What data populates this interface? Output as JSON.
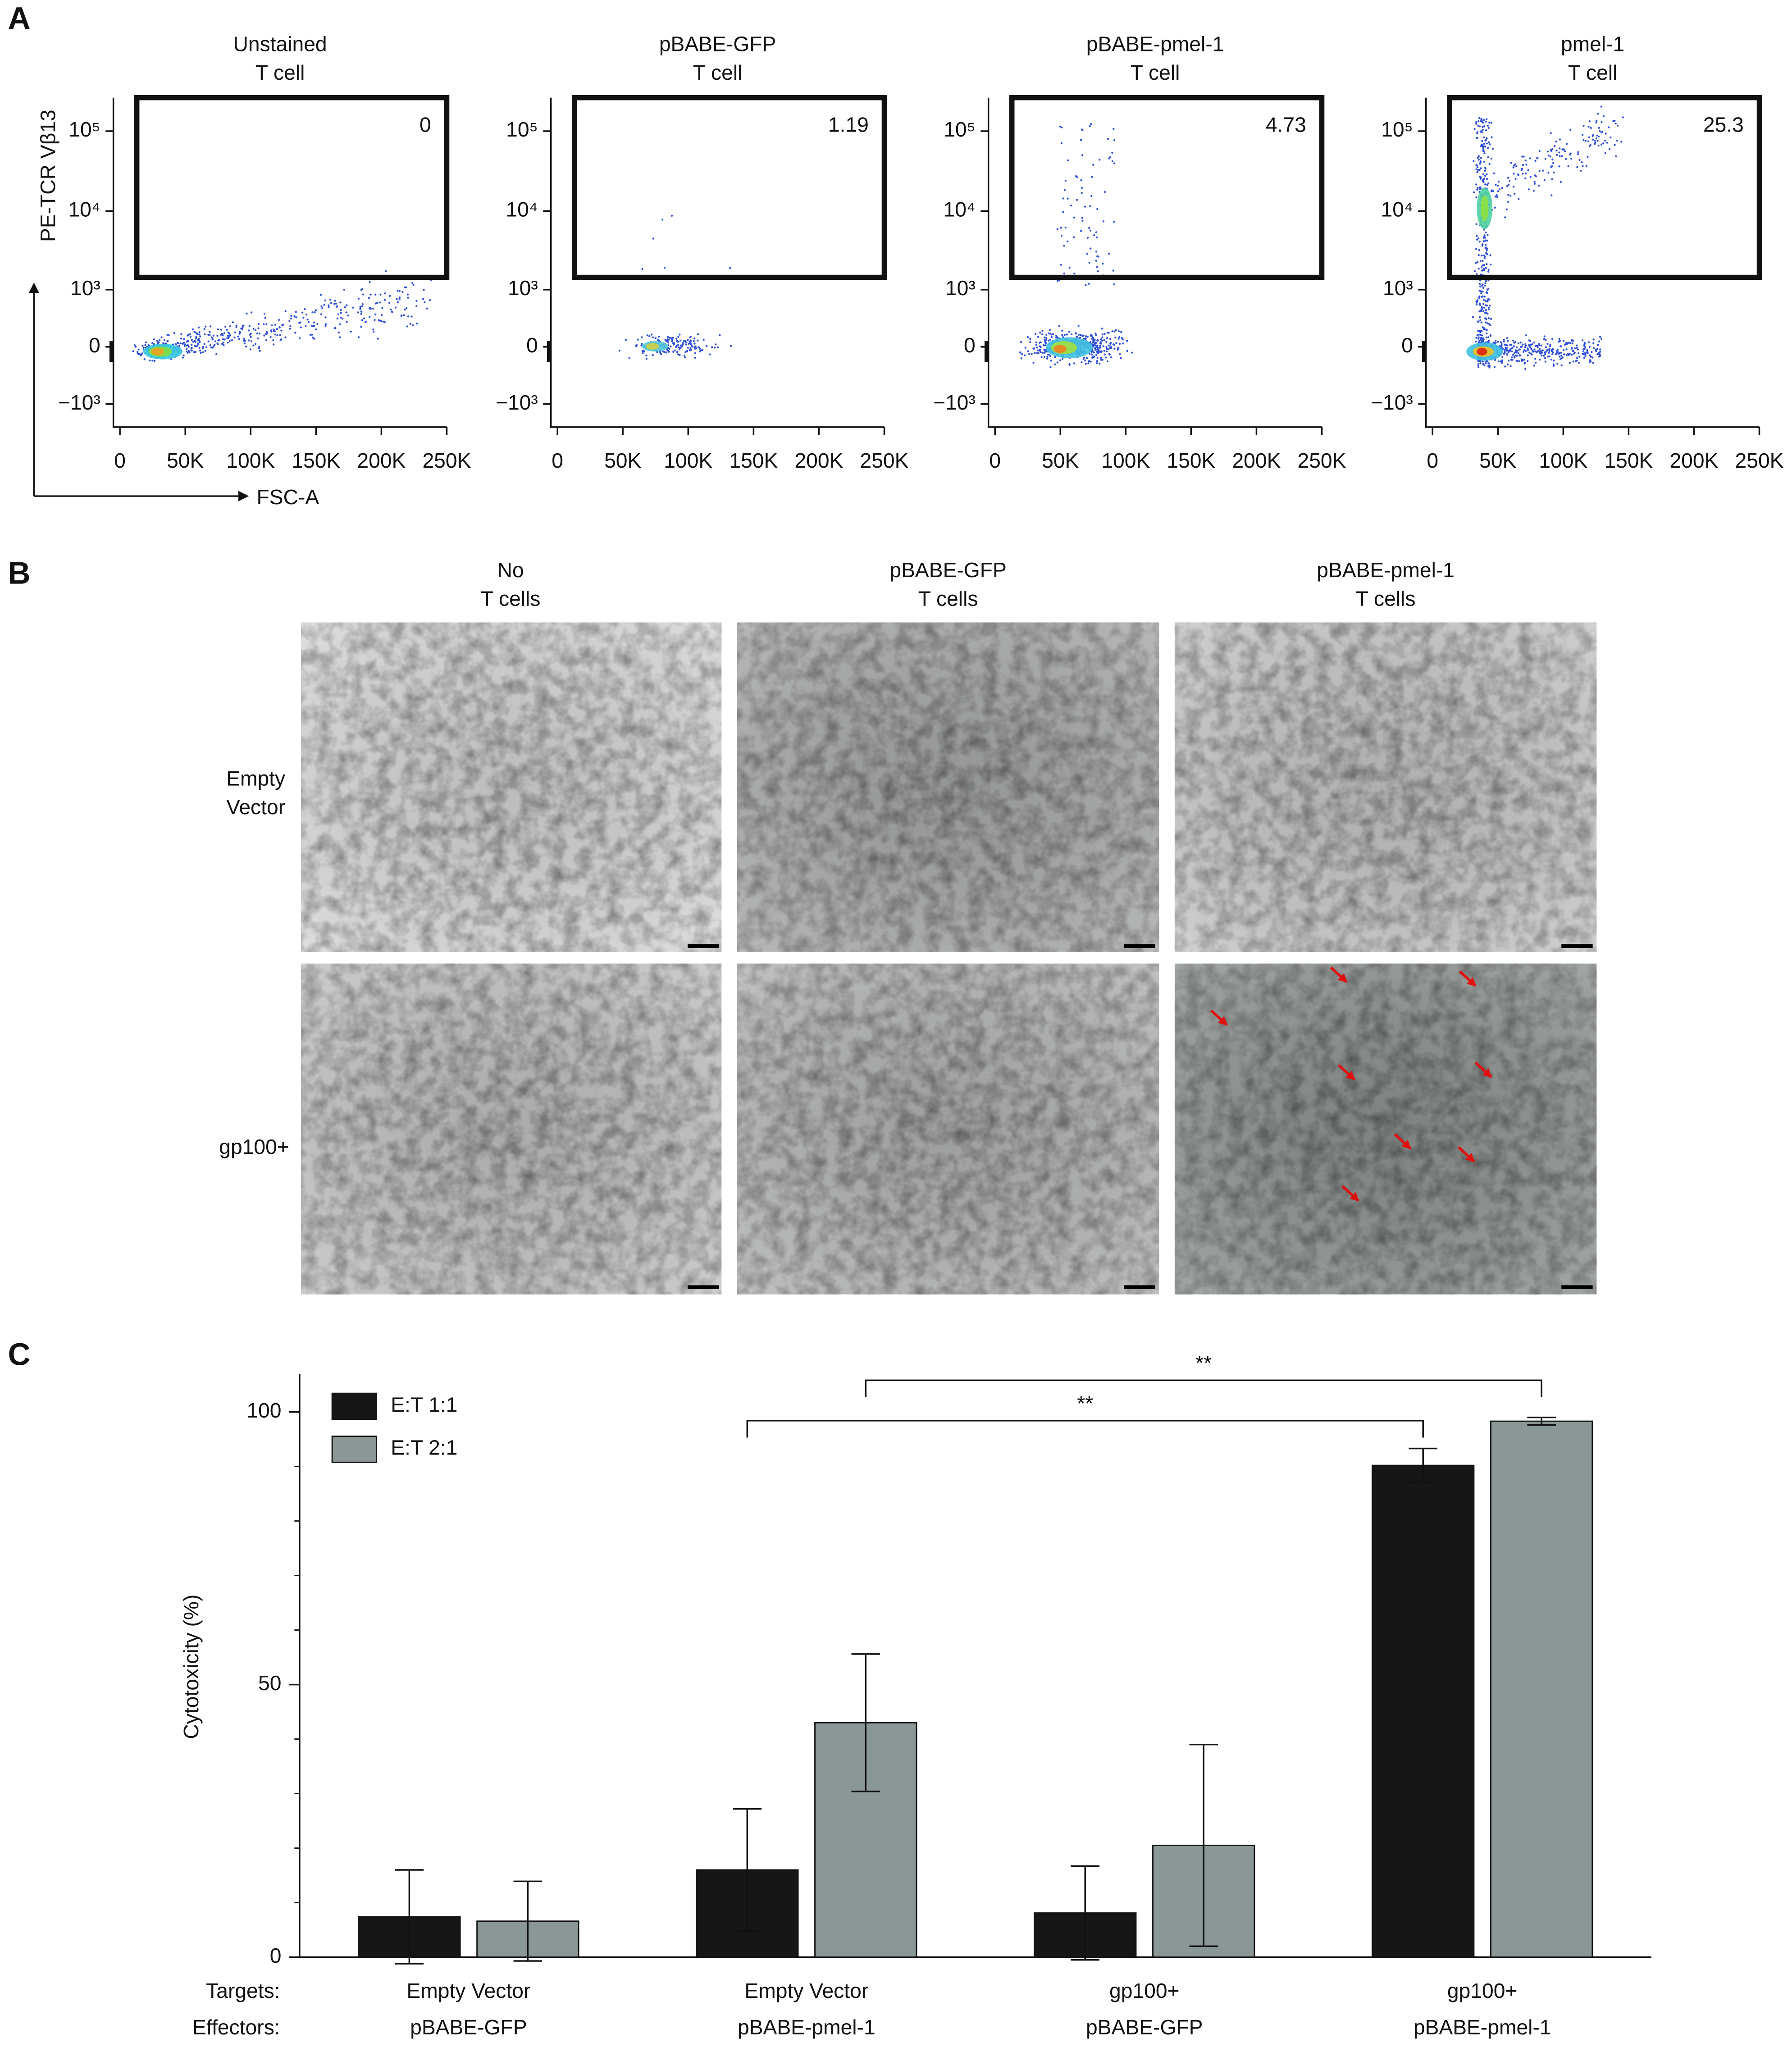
{
  "panel_labels": [
    "A",
    "B",
    "C"
  ],
  "chart_data": [
    {
      "type": "scatter",
      "title": [
        "Unstained",
        "T cell"
      ],
      "gate_percent": 0,
      "xlabel": "FSC-A",
      "ylabel": "PE-TCR Vβ13",
      "xlim": [
        -5000,
        250000
      ],
      "xticks": [
        0,
        {
          "value": 50000,
          "label": "50K"
        },
        {
          "value": 100000,
          "label": "100K"
        },
        {
          "value": 150000,
          "label": "150K"
        },
        {
          "value": 200000,
          "label": "200K"
        },
        {
          "value": 250000,
          "label": "250K"
        }
      ],
      "ylim": [
        -2000,
        262144
      ],
      "yscale": "biexponential",
      "yticks": [
        {
          "value": -1000,
          "label": "−10³"
        },
        0,
        {
          "value": 1000,
          "label": "10³"
        },
        {
          "value": 10000,
          "label": "10⁴"
        },
        {
          "value": 100000,
          "label": "10⁵"
        }
      ]
    },
    {
      "type": "scatter",
      "title": [
        "pBABE-GFP",
        "T cell"
      ],
      "gate_percent": 1.19,
      "xlim": [
        -5000,
        250000
      ],
      "xticks": [
        0,
        {
          "value": 50000,
          "label": "50K"
        },
        {
          "value": 100000,
          "label": "100K"
        },
        {
          "value": 150000,
          "label": "150K"
        },
        {
          "value": 200000,
          "label": "200K"
        },
        {
          "value": 250000,
          "label": "250K"
        }
      ],
      "ylim": [
        -2000,
        262144
      ],
      "yscale": "biexponential",
      "yticks": [
        {
          "value": -1000,
          "label": "−10³"
        },
        0,
        {
          "value": 1000,
          "label": "10³"
        },
        {
          "value": 10000,
          "label": "10⁴"
        },
        {
          "value": 100000,
          "label": "10⁵"
        }
      ]
    },
    {
      "type": "scatter",
      "title": [
        "pBABE-pmel-1",
        "T cell"
      ],
      "gate_percent": 4.73,
      "xlim": [
        -5000,
        250000
      ],
      "xticks": [
        0,
        {
          "value": 50000,
          "label": "50K"
        },
        {
          "value": 100000,
          "label": "100K"
        },
        {
          "value": 150000,
          "label": "150K"
        },
        {
          "value": 200000,
          "label": "200K"
        },
        {
          "value": 250000,
          "label": "250K"
        }
      ],
      "ylim": [
        -2000,
        262144
      ],
      "yscale": "biexponential",
      "yticks": [
        {
          "value": -1000,
          "label": "−10³"
        },
        0,
        {
          "value": 1000,
          "label": "10³"
        },
        {
          "value": 10000,
          "label": "10⁴"
        },
        {
          "value": 100000,
          "label": "10⁵"
        }
      ]
    },
    {
      "type": "scatter",
      "title": [
        "pmel-1",
        "T cell"
      ],
      "gate_percent": 25.3,
      "xlim": [
        -5000,
        250000
      ],
      "xticks": [
        0,
        {
          "value": 50000,
          "label": "50K"
        },
        {
          "value": 100000,
          "label": "100K"
        },
        {
          "value": 150000,
          "label": "150K"
        },
        {
          "value": 200000,
          "label": "200K"
        },
        {
          "value": 250000,
          "label": "250K"
        }
      ],
      "ylim": [
        -2000,
        262144
      ],
      "yscale": "biexponential",
      "yticks": [
        {
          "value": -1000,
          "label": "−10³"
        },
        0,
        {
          "value": 1000,
          "label": "10³"
        },
        {
          "value": 10000,
          "label": "10⁴"
        },
        {
          "value": 100000,
          "label": "10⁵"
        }
      ]
    },
    {
      "type": "bar",
      "ylabel": "Cytotoxicity (%)",
      "category_row_labels": [
        "Targets:",
        "Effectors:"
      ],
      "categories": [
        [
          "Empty Vector",
          "pBABE-GFP"
        ],
        [
          "Empty Vector",
          "pBABE-pmel-1"
        ],
        [
          "gp100+",
          "pBABE-GFP"
        ],
        [
          "gp100+",
          "pBABE-pmel-1"
        ]
      ],
      "series": [
        {
          "name": "E:T 1:1",
          "color": "#161616",
          "values": [
            7.4,
            16,
            8.1,
            90.2
          ],
          "errors": [
            8.6,
            11.2,
            8.6,
            3.1
          ]
        },
        {
          "name": "E:T 2:1",
          "color": "#8b9797",
          "values": [
            6.6,
            43,
            20.5,
            98.3
          ],
          "errors": [
            7.3,
            12.6,
            18.5,
            0.7
          ]
        }
      ],
      "ylim": [
        0,
        107
      ],
      "yticks": [
        0,
        50,
        100
      ],
      "minor_yticks": [
        10,
        20,
        30,
        40,
        60,
        70,
        80,
        90
      ],
      "legend": "upper left",
      "annotations": [
        {
          "text": "**",
          "from": {
            "category": 1,
            "series": 0
          },
          "to": {
            "category": 3,
            "series": 0
          }
        },
        {
          "text": "**",
          "from": {
            "category": 1,
            "series": 1
          },
          "to": {
            "category": 3,
            "series": 1
          }
        }
      ]
    }
  ],
  "image_grid": {
    "column_titles": [
      [
        "No",
        "T cells"
      ],
      [
        "pBABE-GFP",
        "T cells"
      ],
      [
        "pBABE-pmel-1",
        "T cells"
      ]
    ],
    "row_labels": [
      [
        "Empty",
        "Vector"
      ],
      [
        "gp100+"
      ]
    ]
  }
}
